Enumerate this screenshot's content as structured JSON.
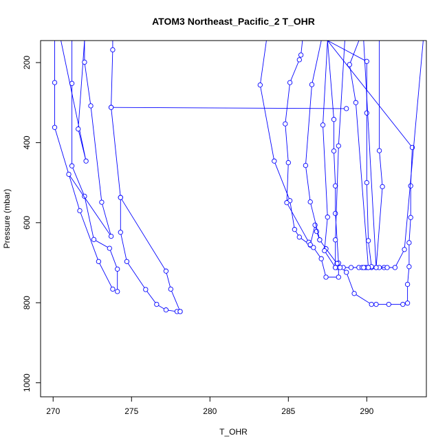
{
  "chart_data": {
    "type": "line",
    "title": "ATOM3 Northeast_Pacific_2 T_OHR",
    "xlabel": "T_OHR",
    "ylabel": "Pressure (mbar)",
    "xlim": [
      269.2,
      293.8
    ],
    "ylim": [
      1035,
      145
    ],
    "y_reversed": true,
    "x_ticks": [
      270,
      275,
      280,
      285,
      290
    ],
    "y_ticks": [
      200,
      400,
      600,
      800,
      1000
    ],
    "grid": false,
    "colors": {
      "series": "#0000ff",
      "frame": "#000000"
    },
    "series": [
      {
        "points": [
          [
            270.1,
            145
          ],
          [
            270.1,
            250
          ],
          [
            270.1,
            362
          ],
          [
            271.7,
            570
          ],
          [
            272.9,
            697
          ],
          [
            273.8,
            766
          ]
        ]
      },
      {
        "points": [
          [
            271.2,
            145
          ],
          [
            271.2,
            252
          ],
          [
            271.2,
            458
          ],
          [
            272.0,
            534
          ],
          [
            272.6,
            642
          ],
          [
            273.6,
            664
          ],
          [
            274.1,
            716
          ],
          [
            274.1,
            772
          ]
        ]
      },
      {
        "points": [
          [
            272.0,
            145
          ],
          [
            271.6,
            366
          ],
          [
            272.1,
            446
          ],
          [
            270.5,
            145
          ]
        ]
      },
      {
        "points": [
          [
            272.0,
            145
          ],
          [
            272.0,
            199
          ],
          [
            272.4,
            308
          ],
          [
            273.1,
            549
          ],
          [
            273.7,
            634
          ],
          [
            271.0,
            479
          ]
        ]
      },
      {
        "points": [
          [
            273.8,
            145
          ],
          [
            273.8,
            168
          ],
          [
            273.7,
            312
          ],
          [
            288.7,
            315
          ],
          [
            273.7,
            312
          ],
          [
            274.3,
            537
          ],
          [
            274.3,
            624
          ],
          [
            274.7,
            697
          ],
          [
            275.9,
            767
          ],
          [
            276.6,
            804
          ],
          [
            277.2,
            818
          ],
          [
            277.9,
            822
          ],
          [
            278.1,
            822
          ]
        ]
      },
      {
        "points": [
          [
            274.3,
            537
          ],
          [
            277.2,
            721
          ],
          [
            277.5,
            766
          ],
          [
            278.1,
            822
          ]
        ]
      },
      {
        "points": [
          [
            283.6,
            145
          ],
          [
            283.2,
            256
          ],
          [
            284.1,
            446
          ],
          [
            285.1,
            545
          ],
          [
            285.4,
            617
          ],
          [
            285.7,
            636
          ],
          [
            286.4,
            656
          ],
          [
            286.6,
            662
          ],
          [
            287.1,
            690
          ],
          [
            287.4,
            736
          ],
          [
            288.2,
            736
          ],
          [
            288.2,
            701
          ],
          [
            288.0,
            577
          ],
          [
            288.0,
            508
          ],
          [
            287.9,
            421
          ],
          [
            287.9,
            342
          ],
          [
            287.5,
            145
          ]
        ]
      },
      {
        "points": [
          [
            285.9,
            145
          ],
          [
            285.8,
            181
          ],
          [
            285.7,
            193
          ],
          [
            285.1,
            250
          ],
          [
            284.8,
            353
          ],
          [
            285.0,
            450
          ],
          [
            284.9,
            550
          ],
          [
            286.3,
            649
          ],
          [
            286.4,
            655
          ],
          [
            286.7,
            606
          ],
          [
            286.8,
            622
          ],
          [
            287.0,
            643
          ]
        ]
      },
      {
        "points": [
          [
            287.1,
            145
          ],
          [
            286.5,
            255
          ],
          [
            286.1,
            457
          ],
          [
            286.4,
            548
          ],
          [
            287.0,
            643
          ],
          [
            287.4,
            665
          ],
          [
            288.1,
            702
          ],
          [
            288.7,
            724
          ],
          [
            289.2,
            777
          ],
          [
            290.3,
            804
          ],
          [
            290.6,
            804
          ],
          [
            291.4,
            804
          ],
          [
            292.3,
            804
          ],
          [
            292.6,
            801
          ],
          [
            292.6,
            754
          ],
          [
            292.7,
            710
          ],
          [
            292.7,
            650
          ],
          [
            292.8,
            587
          ],
          [
            292.8,
            508
          ],
          [
            292.9,
            412
          ],
          [
            287.5,
            145
          ]
        ]
      },
      {
        "points": [
          [
            287.5,
            145
          ],
          [
            287.2,
            356
          ],
          [
            287.5,
            586
          ],
          [
            287.3,
            670
          ],
          [
            288.0,
            712
          ],
          [
            288.1,
            712
          ],
          [
            288.5,
            712
          ],
          [
            289.0,
            712
          ],
          [
            289.5,
            712
          ],
          [
            289.7,
            712
          ],
          [
            289.9,
            712
          ],
          [
            290.0,
            712
          ],
          [
            290.3,
            712
          ],
          [
            290.6,
            712
          ],
          [
            291.1,
            712
          ],
          [
            291.8,
            712
          ],
          [
            292.4,
            667
          ],
          [
            293.6,
            145
          ]
        ]
      },
      {
        "points": [
          [
            288.6,
            145
          ],
          [
            288.2,
            408
          ],
          [
            288.0,
            643
          ],
          [
            288.0,
            712
          ],
          [
            288.3,
            712
          ]
        ]
      },
      {
        "points": [
          [
            287.5,
            145
          ],
          [
            290.0,
            197
          ],
          [
            290.0,
            326
          ],
          [
            290.0,
            500
          ],
          [
            290.1,
            645
          ],
          [
            290.3,
            710
          ],
          [
            290.1,
            712
          ],
          [
            290.8,
            712
          ],
          [
            291.3,
            712
          ]
        ]
      },
      {
        "points": [
          [
            290.8,
            145
          ],
          [
            290.8,
            420
          ],
          [
            291.0,
            510
          ],
          [
            290.6,
            712
          ],
          [
            289.8,
            145
          ]
        ]
      },
      {
        "points": [
          [
            289.5,
            145
          ],
          [
            288.9,
            205
          ],
          [
            289.3,
            300
          ],
          [
            290.1,
            712
          ],
          [
            289.8,
            712
          ]
        ]
      }
    ]
  }
}
